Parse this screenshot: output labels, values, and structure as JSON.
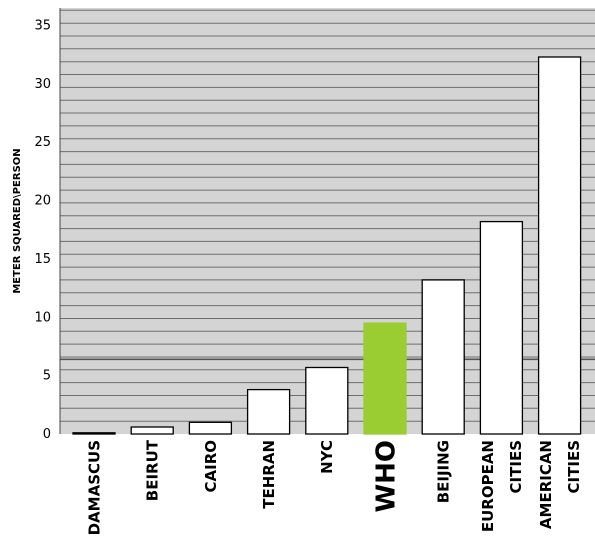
{
  "chart_data": {
    "type": "bar",
    "title": "",
    "xlabel": "",
    "ylabel": "METER SQUARED\\PERSON",
    "ylim": [
      0,
      36.5
    ],
    "yticks": [
      0,
      5,
      10,
      15,
      20,
      25,
      30,
      35
    ],
    "grid": true,
    "categories": [
      [
        "DAMASCUS"
      ],
      [
        "BEIRUT"
      ],
      [
        "CAIRO"
      ],
      [
        "TEHRAN"
      ],
      [
        "NYC"
      ],
      [
        "WHO"
      ],
      [
        "BEIJING"
      ],
      [
        "EUROPEAN",
        "CITIES"
      ],
      [
        "AMERICAN",
        "CITIES"
      ]
    ],
    "values": [
      0.1,
      0.6,
      1.0,
      3.8,
      5.7,
      9.5,
      13.2,
      18.2,
      32.3
    ],
    "bar_colors": [
      "#ffffff",
      "#ffffff",
      "#ffffff",
      "#ffffff",
      "#ffffff",
      "#9acd32",
      "#ffffff",
      "#ffffff",
      "#ffffff"
    ],
    "background_color": "#d4d4d4",
    "grid_color": "#6e6e6e",
    "bar_edge_color": "#000000",
    "highlight_category": "WHO"
  }
}
